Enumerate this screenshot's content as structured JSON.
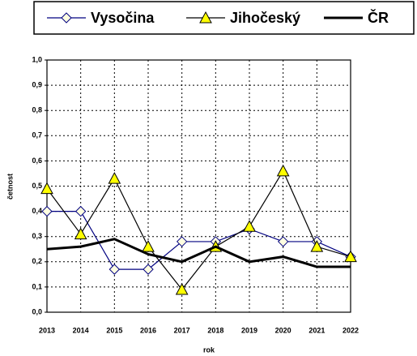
{
  "chart_data": {
    "type": "line",
    "x_label": "rok",
    "y_label": "četnost",
    "categories": [
      "2013",
      "2014",
      "2015",
      "2016",
      "2017",
      "2018",
      "2019",
      "2020",
      "2021",
      "2022"
    ],
    "series": [
      {
        "name": "Vysočina",
        "color": "#000080",
        "marker": "diamond",
        "marker_fill": "#ffffe0",
        "values": [
          0.4,
          0.4,
          0.17,
          0.17,
          0.28,
          0.28,
          0.33,
          0.28,
          0.28,
          0.22
        ]
      },
      {
        "name": "Jihočeský",
        "color": "#000000",
        "marker": "triangle",
        "marker_fill": "#ffff00",
        "values": [
          0.49,
          0.31,
          0.53,
          0.26,
          0.09,
          0.26,
          0.34,
          0.56,
          0.26,
          0.22
        ]
      },
      {
        "name": "ČR",
        "color": "#000000",
        "marker": "none",
        "line_width": 3,
        "values": [
          0.25,
          0.26,
          0.29,
          0.23,
          0.2,
          0.26,
          0.2,
          0.22,
          0.18,
          0.18
        ]
      }
    ],
    "ylim": [
      0,
      1
    ],
    "yticks": [
      {
        "value": 0,
        "label": "0,0"
      },
      {
        "value": 0.1,
        "label": "0,1"
      },
      {
        "value": 0.2,
        "label": "0,2"
      },
      {
        "value": 0.3,
        "label": "0,3"
      },
      {
        "value": 0.4,
        "label": "0,4"
      },
      {
        "value": 0.5,
        "label": "0,5"
      },
      {
        "value": 0.6,
        "label": "0,6"
      },
      {
        "value": 0.7,
        "label": "0,7"
      },
      {
        "value": 0.8,
        "label": "0,8"
      },
      {
        "value": 0.9,
        "label": "0,9"
      },
      {
        "value": 1,
        "label": "1,0"
      }
    ],
    "grid": true,
    "legend": "top"
  }
}
